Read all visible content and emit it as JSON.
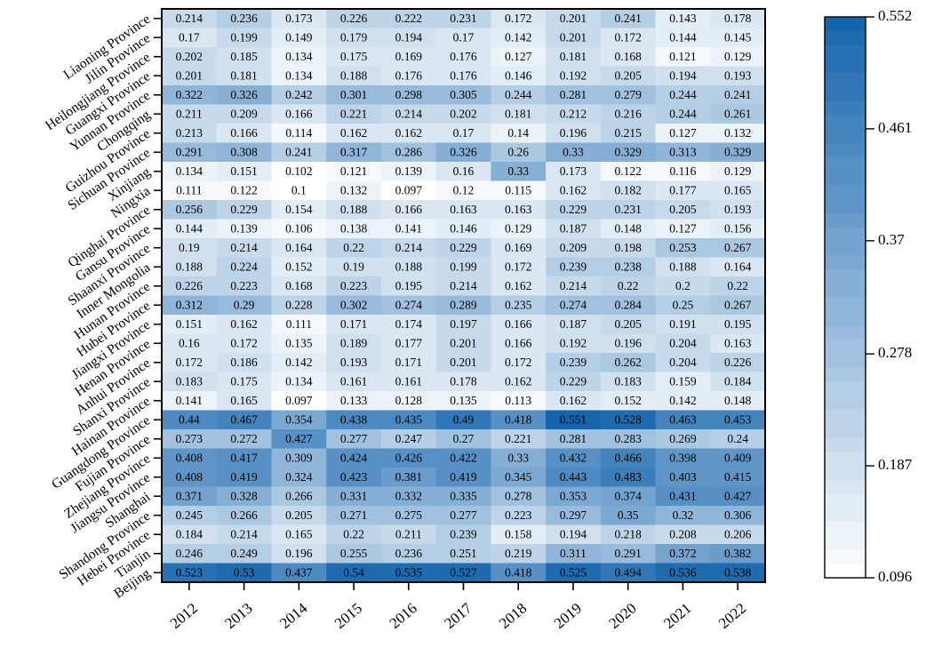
{
  "chart_data": {
    "type": "heatmap",
    "title": "",
    "xlabel": "",
    "ylabel": "",
    "x": [
      "2012",
      "2013",
      "2014",
      "2015",
      "2016",
      "2017",
      "2018",
      "2019",
      "2020",
      "2021",
      "2022"
    ],
    "y": [
      "Liaoning Province",
      "Jilin Province",
      "Heilongjiang Province",
      "Guangxi Province",
      "Yunnan Province",
      "Chongqing",
      "Guizhou Province",
      "Sichuan Province",
      "Xinjiang",
      "Ningxia",
      "Qinghai Province",
      "Gansu Province",
      "Shaanxi Province",
      "Inner Mongolia",
      "Hunan Province",
      "Hubei Province",
      "Jiangxi Province",
      "Henan Province",
      "Anhui Province",
      "Shanxi Province",
      "Hainan Province",
      "Guangdong Province",
      "Fujian Province",
      "Zhejiang Province",
      "Jiangsu Province",
      "Shanghai",
      "Shandong Province",
      "Hebei Province",
      "Tianjin",
      "Beijing"
    ],
    "values": [
      [
        0.214,
        0.236,
        0.173,
        0.226,
        0.222,
        0.231,
        0.172,
        0.201,
        0.241,
        0.143,
        0.178
      ],
      [
        0.17,
        0.199,
        0.149,
        0.179,
        0.194,
        0.17,
        0.142,
        0.201,
        0.172,
        0.144,
        0.145
      ],
      [
        0.202,
        0.185,
        0.134,
        0.175,
        0.169,
        0.176,
        0.127,
        0.181,
        0.168,
        0.121,
        0.129
      ],
      [
        0.201,
        0.181,
        0.134,
        0.188,
        0.176,
        0.176,
        0.146,
        0.192,
        0.205,
        0.194,
        0.193
      ],
      [
        0.322,
        0.326,
        0.242,
        0.301,
        0.298,
        0.305,
        0.244,
        0.281,
        0.279,
        0.244,
        0.241
      ],
      [
        0.211,
        0.209,
        0.166,
        0.221,
        0.214,
        0.202,
        0.181,
        0.212,
        0.216,
        0.244,
        0.261
      ],
      [
        0.213,
        0.166,
        0.114,
        0.162,
        0.162,
        0.17,
        0.14,
        0.196,
        0.215,
        0.127,
        0.132
      ],
      [
        0.291,
        0.308,
        0.241,
        0.317,
        0.286,
        0.326,
        0.26,
        0.33,
        0.329,
        0.313,
        0.329
      ],
      [
        0.134,
        0.151,
        0.102,
        0.121,
        0.139,
        0.16,
        0.33,
        0.173,
        0.122,
        0.116,
        0.129
      ],
      [
        0.111,
        0.122,
        0.1,
        0.132,
        0.097,
        0.12,
        0.115,
        0.162,
        0.182,
        0.177,
        0.165
      ],
      [
        0.256,
        0.229,
        0.154,
        0.188,
        0.166,
        0.163,
        0.163,
        0.229,
        0.231,
        0.205,
        0.193
      ],
      [
        0.144,
        0.139,
        0.106,
        0.138,
        0.141,
        0.146,
        0.129,
        0.187,
        0.148,
        0.127,
        0.156
      ],
      [
        0.19,
        0.214,
        0.164,
        0.22,
        0.214,
        0.229,
        0.169,
        0.209,
        0.198,
        0.253,
        0.267
      ],
      [
        0.188,
        0.224,
        0.152,
        0.19,
        0.188,
        0.199,
        0.172,
        0.239,
        0.238,
        0.188,
        0.164
      ],
      [
        0.226,
        0.223,
        0.168,
        0.223,
        0.195,
        0.214,
        0.162,
        0.214,
        0.22,
        0.2,
        0.22
      ],
      [
        0.312,
        0.29,
        0.228,
        0.302,
        0.274,
        0.289,
        0.235,
        0.274,
        0.284,
        0.25,
        0.267
      ],
      [
        0.151,
        0.162,
        0.111,
        0.171,
        0.174,
        0.197,
        0.166,
        0.187,
        0.205,
        0.191,
        0.195
      ],
      [
        0.16,
        0.172,
        0.135,
        0.189,
        0.177,
        0.201,
        0.166,
        0.192,
        0.196,
        0.204,
        0.163
      ],
      [
        0.172,
        0.186,
        0.142,
        0.193,
        0.171,
        0.201,
        0.172,
        0.239,
        0.262,
        0.204,
        0.226
      ],
      [
        0.183,
        0.175,
        0.134,
        0.161,
        0.161,
        0.178,
        0.162,
        0.229,
        0.183,
        0.159,
        0.184
      ],
      [
        0.141,
        0.165,
        0.097,
        0.133,
        0.128,
        0.135,
        0.113,
        0.162,
        0.152,
        0.142,
        0.148
      ],
      [
        0.44,
        0.467,
        0.354,
        0.438,
        0.435,
        0.49,
        0.418,
        0.551,
        0.528,
        0.463,
        0.453
      ],
      [
        0.273,
        0.272,
        0.427,
        0.277,
        0.247,
        0.27,
        0.221,
        0.281,
        0.283,
        0.269,
        0.24
      ],
      [
        0.408,
        0.417,
        0.309,
        0.424,
        0.426,
        0.422,
        0.33,
        0.432,
        0.466,
        0.398,
        0.409
      ],
      [
        0.408,
        0.419,
        0.324,
        0.423,
        0.381,
        0.419,
        0.345,
        0.443,
        0.483,
        0.403,
        0.415
      ],
      [
        0.371,
        0.328,
        0.266,
        0.331,
        0.332,
        0.335,
        0.278,
        0.353,
        0.374,
        0.431,
        0.427
      ],
      [
        0.245,
        0.266,
        0.205,
        0.271,
        0.275,
        0.277,
        0.223,
        0.297,
        0.35,
        0.32,
        0.306
      ],
      [
        0.184,
        0.214,
        0.165,
        0.22,
        0.211,
        0.239,
        0.158,
        0.194,
        0.218,
        0.208,
        0.206
      ],
      [
        0.246,
        0.249,
        0.196,
        0.255,
        0.236,
        0.251,
        0.219,
        0.311,
        0.291,
        0.372,
        0.382
      ],
      [
        0.523,
        0.53,
        0.437,
        0.54,
        0.535,
        0.527,
        0.418,
        0.525,
        0.494,
        0.536,
        0.538
      ]
    ],
    "colorbar": {
      "min": 0.096,
      "max": 0.552,
      "ticks": [
        "0.552",
        "0.461",
        "0.37",
        "0.278",
        "0.187",
        "0.096"
      ],
      "color_low": "#ffffff",
      "color_high": "#1565ad"
    },
    "grid": false,
    "legend": "colorbar-right"
  }
}
